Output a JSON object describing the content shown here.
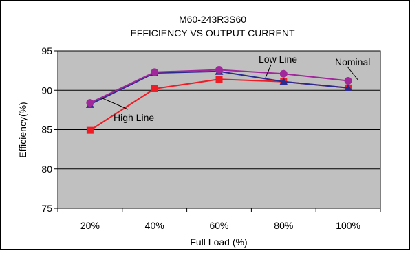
{
  "chart_data": {
    "type": "line",
    "title": "M60-243R3S60",
    "subtitle": "EFFICIENCY VS OUTPUT CURRENT",
    "xlabel": "Full Load (%)",
    "ylabel": "Efficiency(%)",
    "categories": [
      "20%",
      "40%",
      "60%",
      "80%",
      "100%"
    ],
    "ylim": [
      75,
      95
    ],
    "yticks": [
      75,
      80,
      85,
      90,
      95
    ],
    "grid": true,
    "plot_background": "#c0c0c0",
    "series": [
      {
        "name": "Low Line",
        "values": [
          88.2,
          92.2,
          92.4,
          91.1,
          90.3
        ],
        "color": "#2b2b8f",
        "marker": "triangle"
      },
      {
        "name": "Nominal",
        "values": [
          88.4,
          92.3,
          92.6,
          92.1,
          91.2
        ],
        "color": "#a0289a",
        "marker": "circle"
      },
      {
        "name": "High Line",
        "values": [
          84.9,
          90.2,
          91.4,
          91.1,
          90.3
        ],
        "color": "#ee1c25",
        "marker": "square"
      }
    ]
  }
}
